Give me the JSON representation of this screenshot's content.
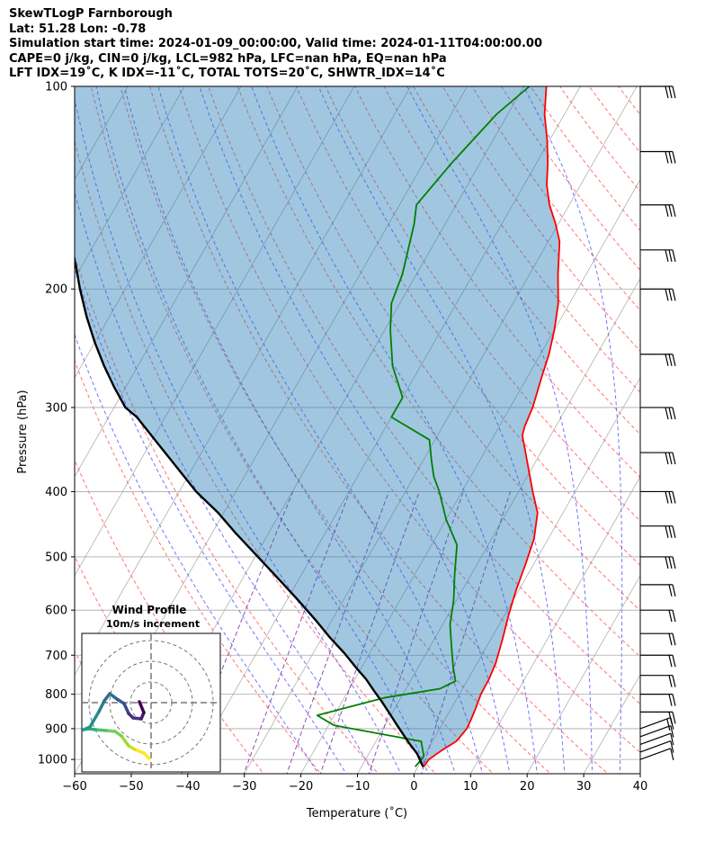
{
  "header": {
    "line1": "SkewTLogP Farnborough",
    "line2": "Lat: 51.28   Lon: -0.78",
    "line3": "Simulation start time: 2024-01-09_00:00:00, Valid time: 2024-01-11T04:00:00.00",
    "line4": "CAPE=0 j/kg, CIN=0 j/kg, LCL=982 hPa, LFC=nan hPa, EQ=nan hPa",
    "line5": "LFT IDX=19˚C, K IDX=-11˚C, TOTAL TOTS=20˚C, SHWTR_IDX=14˚C"
  },
  "chart_data": {
    "type": "skew-t",
    "xlabel": "Temperature (˚C)",
    "ylabel": "Pressure (hPa)",
    "xlim": [
      -60,
      40
    ],
    "ylim": [
      1050,
      100
    ],
    "y_scale": "log",
    "grid": true,
    "x_ticks": [
      -60,
      -50,
      -40,
      -30,
      -20,
      -10,
      0,
      10,
      20,
      30,
      40
    ],
    "y_ticks": [
      100,
      200,
      300,
      400,
      500,
      600,
      700,
      800,
      900,
      1000
    ],
    "series": [
      {
        "color": "#ff0000",
        "points": [
          [
            1.0,
            1025
          ],
          [
            1.2,
            1000
          ],
          [
            2.5,
            970
          ],
          [
            4.2,
            940
          ],
          [
            4.8,
            900
          ],
          [
            4.6,
            870
          ],
          [
            4.3,
            840
          ],
          [
            3.8,
            800
          ],
          [
            3.7,
            760
          ],
          [
            3.3,
            720
          ],
          [
            2.0,
            660
          ],
          [
            0.7,
            610
          ],
          [
            -0.5,
            560
          ],
          [
            -1.5,
            510
          ],
          [
            -2.5,
            470
          ],
          [
            -4.5,
            430
          ],
          [
            -7.5,
            400
          ],
          [
            -15.0,
            330
          ],
          [
            -15.5,
            320
          ],
          [
            -16.0,
            300
          ],
          [
            -17.5,
            270
          ],
          [
            -18.5,
            250
          ],
          [
            -20.0,
            230
          ],
          [
            -22.0,
            210
          ],
          [
            -25.0,
            190
          ],
          [
            -28.0,
            170
          ],
          [
            -30.5,
            160
          ],
          [
            -33.5,
            150
          ],
          [
            -36.0,
            140
          ],
          [
            -38.0,
            130
          ],
          [
            -40.5,
            120
          ],
          [
            -43.5,
            110
          ],
          [
            -46.0,
            100
          ]
        ]
      },
      {
        "color": "#008000",
        "points": [
          [
            -0.5,
            1025
          ],
          [
            0,
            990
          ],
          [
            -2,
            940
          ],
          [
            -19,
            890
          ],
          [
            -23,
            860
          ],
          [
            -13,
            810
          ],
          [
            -4,
            785
          ],
          [
            -2,
            765
          ],
          [
            -3.8,
            730
          ],
          [
            -6.2,
            680
          ],
          [
            -8.7,
            630
          ],
          [
            -10.5,
            580
          ],
          [
            -13,
            530
          ],
          [
            -15.5,
            480
          ],
          [
            -20,
            440
          ],
          [
            -24,
            400
          ],
          [
            -26.5,
            380
          ],
          [
            -28.5,
            360
          ],
          [
            -31,
            335
          ],
          [
            -40,
            310
          ],
          [
            -40,
            290
          ],
          [
            -45,
            260
          ],
          [
            -49,
            230
          ],
          [
            -51.5,
            210
          ],
          [
            -52.5,
            190
          ],
          [
            -55.5,
            160
          ],
          [
            -57,
            150
          ],
          [
            -55,
            130
          ],
          [
            -52,
            110
          ],
          [
            -49,
            100
          ]
        ]
      },
      {
        "color": "#000000",
        "points": [
          [
            0.9,
            1025
          ],
          [
            -1.5,
            980
          ],
          [
            -4,
            945
          ],
          [
            -7.5,
            895
          ],
          [
            -10,
            860
          ],
          [
            -13,
            820
          ],
          [
            -15.5,
            790
          ],
          [
            -18,
            760
          ],
          [
            -21,
            730
          ],
          [
            -24.5,
            695
          ],
          [
            -28.5,
            660
          ],
          [
            -33,
            620
          ],
          [
            -38,
            580
          ],
          [
            -43.5,
            540
          ],
          [
            -49.5,
            500
          ],
          [
            -56,
            460
          ],
          [
            -61,
            430
          ],
          [
            -67,
            400
          ],
          [
            -72.5,
            370
          ],
          [
            -78.5,
            340
          ],
          [
            -85,
            310
          ],
          [
            -88,
            300
          ],
          [
            -92,
            280
          ],
          [
            -96,
            260
          ],
          [
            -100,
            240
          ],
          [
            -104,
            220
          ],
          [
            -108,
            200
          ],
          [
            -111,
            185
          ],
          [
            -114.5,
            170
          ],
          [
            -118,
            155
          ],
          [
            -121.5,
            140
          ],
          [
            -126,
            125
          ],
          [
            -130,
            115
          ],
          [
            -134,
            100
          ]
        ]
      }
    ],
    "barbs": {
      "color": "#000000",
      "pressures": [
        1000,
        975,
        950,
        925,
        900,
        850,
        800,
        750,
        700,
        650,
        600,
        550,
        500,
        450,
        400,
        350,
        300,
        250,
        200,
        175,
        150,
        125,
        100
      ]
    },
    "inset": {
      "type": "hodograph",
      "title": "Wind Profile",
      "subtitle": "10m/s increment",
      "ring_increment": 10
    }
  }
}
